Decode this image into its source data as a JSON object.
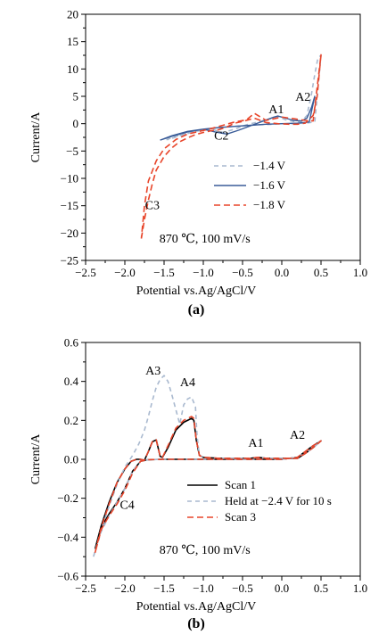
{
  "chart_data": [
    {
      "panel": "(a)",
      "type": "line",
      "xlabel": "Potential vs.Ag/AgCl/V",
      "ylabel": "Current/A",
      "xlim": [
        -2.5,
        1.0
      ],
      "ylim": [
        -25,
        20
      ],
      "xticks": [
        -2.5,
        -2.0,
        -1.5,
        -1.0,
        -0.5,
        0.0,
        0.5,
        1.0
      ],
      "yticks": [
        -25,
        -20,
        -15,
        -10,
        -5,
        0,
        5,
        10,
        15,
        20
      ],
      "xtick_labels": [
        "−2.5",
        "−2.0",
        "−1.5",
        "−1.0",
        "−0.5",
        "0.0",
        "0.5",
        "1.0"
      ],
      "ytick_labels": [
        "−25",
        "−20",
        "−15",
        "−10",
        "−5",
        "0",
        "5",
        "10",
        "15",
        "20"
      ],
      "annotations": [
        {
          "text": "A1",
          "x": -0.07,
          "y": 1.9
        },
        {
          "text": "A2",
          "x": 0.27,
          "y": 4.2
        },
        {
          "text": "C2",
          "x": -0.77,
          "y": -2.9
        },
        {
          "text": "C3",
          "x": -1.65,
          "y": -15.6
        },
        {
          "text": "870 ℃, 100 mV/s",
          "x": -0.98,
          "y": -21.7
        }
      ],
      "legend_position": "center-right",
      "series": [
        {
          "name": "−1.4 V",
          "color": "#a9b9cf",
          "style": "dashed",
          "x": [
            -1.47,
            -1.3,
            -1.1,
            -0.9,
            -0.75,
            -0.6,
            -0.45,
            -0.3,
            -0.15,
            -0.05,
            0.05,
            0.15,
            0.25,
            0.32,
            0.38,
            0.42,
            0.46,
            0.5,
            0.42,
            0.3,
            0.1,
            -0.1,
            -0.3,
            -0.5,
            -0.7,
            -0.9,
            -1.1,
            -1.3,
            -1.45,
            -1.47
          ],
          "y": [
            -2.9,
            -2.1,
            -1.4,
            -1.0,
            -1.6,
            -1.0,
            -0.2,
            0.3,
            0.9,
            1.3,
            0.7,
            0.4,
            0.4,
            1.5,
            5.5,
            9.0,
            12.0,
            12.5,
            0.3,
            0.1,
            0.0,
            -0.1,
            -0.2,
            -0.4,
            -0.6,
            -0.9,
            -1.4,
            -2.2,
            -2.9,
            -2.9
          ]
        },
        {
          "name": "−1.6 V",
          "color": "#3a5c98",
          "style": "solid",
          "x": [
            -1.55,
            -1.4,
            -1.2,
            -1.0,
            -0.85,
            -0.7,
            -0.55,
            -0.4,
            -0.25,
            -0.1,
            -0.05,
            0.05,
            0.15,
            0.25,
            0.32,
            0.38,
            0.42,
            0.35,
            0.2,
            0.0,
            -0.2,
            -0.4,
            -0.6,
            -0.8,
            -1.0,
            -1.2,
            -1.4,
            -1.55
          ],
          "y": [
            -3.0,
            -2.2,
            -1.4,
            -1.0,
            -1.5,
            -1.9,
            -1.2,
            -0.4,
            0.4,
            1.2,
            1.4,
            1.0,
            0.6,
            0.5,
            1.0,
            3.0,
            5.0,
            0.3,
            0.1,
            0.0,
            -0.1,
            -0.3,
            -0.5,
            -0.7,
            -1.0,
            -1.5,
            -2.3,
            -3.0
          ]
        },
        {
          "name": "−1.8 V",
          "color": "#e8452a",
          "style": "dashed",
          "x": [
            -1.79,
            -1.75,
            -1.7,
            -1.65,
            -1.6,
            -1.5,
            -1.4,
            -1.3,
            -1.2,
            -1.1,
            -1.0,
            -0.9,
            -0.8,
            -0.7,
            -0.6,
            -0.5,
            -0.35,
            -0.2,
            -0.05,
            0.1,
            0.2,
            0.3,
            0.4,
            0.45,
            0.5,
            0.4,
            0.3,
            0.15,
            0.0,
            -0.2,
            -0.35,
            -0.45,
            -0.6,
            -0.75,
            -0.9,
            -1.05,
            -1.2,
            -1.35,
            -1.5,
            -1.6,
            -1.7,
            -1.75,
            -1.79
          ],
          "y": [
            -21.0,
            -17.5,
            -14.0,
            -11.0,
            -8.5,
            -6.0,
            -4.4,
            -3.3,
            -2.6,
            -2.0,
            -1.6,
            -1.3,
            -1.1,
            -0.6,
            0.1,
            0.4,
            1.0,
            0.2,
            0.0,
            -0.1,
            -0.1,
            0.1,
            1.5,
            5.0,
            12.6,
            0.5,
            0.6,
            0.9,
            1.2,
            0.6,
            1.9,
            0.7,
            0.3,
            -0.3,
            -0.9,
            -1.4,
            -1.9,
            -2.9,
            -4.6,
            -6.8,
            -10.5,
            -15.0,
            -21.0
          ]
        }
      ]
    },
    {
      "panel": "(b)",
      "type": "line",
      "xlabel": "Potential vs.Ag/AgCl/V",
      "ylabel": "Current/A",
      "xlim": [
        -2.5,
        1.0
      ],
      "ylim": [
        -0.6,
        0.6
      ],
      "xticks": [
        -2.5,
        -2.0,
        -1.5,
        -1.0,
        -0.5,
        0.0,
        0.5,
        1.0
      ],
      "yticks": [
        -0.6,
        -0.4,
        -0.2,
        0.0,
        0.2,
        0.4,
        0.6
      ],
      "xtick_labels": [
        "−2.5",
        "−2.0",
        "−1.5",
        "−1.0",
        "−0.5",
        "0.0",
        "0.5",
        "1.0"
      ],
      "ytick_labels": [
        "−0.6",
        "−0.4",
        "−0.2",
        "0.0",
        "0.2",
        "0.4",
        "0.6"
      ],
      "annotations": [
        {
          "text": "A3",
          "x": -1.64,
          "y": 0.435
        },
        {
          "text": "A4",
          "x": -1.2,
          "y": 0.375
        },
        {
          "text": "A1",
          "x": -0.33,
          "y": 0.065
        },
        {
          "text": "A2",
          "x": 0.2,
          "y": 0.105
        },
        {
          "text": "C4",
          "x": -1.97,
          "y": -0.255
        },
        {
          "text": "870 ℃, 100 mV/s",
          "x": -0.98,
          "y": -0.485
        }
      ],
      "legend_position": "bottom-right",
      "series": [
        {
          "name": "Scan 1",
          "color": "#000000",
          "style": "solid",
          "x": [
            -2.38,
            -2.3,
            -2.2,
            -2.1,
            -2.0,
            -1.92,
            -1.85,
            -1.8,
            -1.75,
            -1.7,
            -1.65,
            -1.6,
            -1.57,
            -1.55,
            -1.52,
            -1.45,
            -1.35,
            -1.25,
            -1.15,
            -1.12,
            -1.09,
            -1.05,
            -1.0,
            -0.8,
            -0.6,
            -0.4,
            -0.3,
            -0.2,
            0.0,
            0.1,
            0.2,
            0.3,
            0.4,
            0.5,
            0.4,
            0.3,
            0.2,
            0.0,
            -0.5,
            -1.0,
            -1.5,
            -1.7,
            -1.8,
            -1.9,
            -2.0,
            -2.1,
            -2.2,
            -2.3,
            -2.38
          ],
          "y": [
            -0.46,
            -0.34,
            -0.22,
            -0.12,
            -0.05,
            -0.01,
            0.0,
            0.0,
            -0.005,
            0.04,
            0.09,
            0.1,
            0.05,
            0.015,
            0.01,
            0.06,
            0.15,
            0.19,
            0.21,
            0.2,
            0.1,
            0.02,
            0.01,
            0.005,
            0.005,
            0.005,
            0.01,
            0.005,
            0.005,
            0.005,
            0.005,
            0.03,
            0.06,
            0.095,
            0.07,
            0.04,
            0.01,
            0.0,
            0.0,
            0.0,
            0.0,
            -0.002,
            -0.01,
            -0.06,
            -0.15,
            -0.22,
            -0.28,
            -0.35,
            -0.46
          ]
        },
        {
          "name": "Held at −2.4 V for 10 s",
          "color": "#a9b9cf",
          "style": "dashed",
          "x": [
            -2.4,
            -2.3,
            -2.2,
            -2.1,
            -2.0,
            -1.9,
            -1.82,
            -1.75,
            -1.7,
            -1.65,
            -1.6,
            -1.55,
            -1.5,
            -1.45,
            -1.4,
            -1.3,
            -1.25,
            -1.2,
            -1.15,
            -1.1,
            -1.08,
            -1.05,
            -1.0,
            -0.8,
            -0.6,
            -0.4,
            -0.3,
            -0.2,
            0.0,
            0.1,
            0.2,
            0.3,
            0.4,
            0.5,
            0.4,
            0.3,
            0.2,
            0.0,
            -0.5,
            -1.0,
            -1.5,
            -1.7,
            -1.8,
            -1.9,
            -2.0,
            -2.1,
            -2.2,
            -2.3,
            -2.4
          ],
          "y": [
            -0.5,
            -0.36,
            -0.24,
            -0.13,
            -0.04,
            0.02,
            0.08,
            0.15,
            0.22,
            0.3,
            0.37,
            0.41,
            0.43,
            0.4,
            0.33,
            0.18,
            0.28,
            0.31,
            0.32,
            0.27,
            0.12,
            0.02,
            0.01,
            0.005,
            0.005,
            0.005,
            0.01,
            0.005,
            0.005,
            0.005,
            0.005,
            0.03,
            0.06,
            0.095,
            0.07,
            0.04,
            0.01,
            0.0,
            0.0,
            0.0,
            0.0,
            -0.002,
            -0.01,
            -0.06,
            -0.15,
            -0.22,
            -0.29,
            -0.37,
            -0.5
          ]
        },
        {
          "name": "Scan 3",
          "color": "#e8452a",
          "style": "dashed",
          "x": [
            -2.38,
            -2.3,
            -2.2,
            -2.1,
            -2.0,
            -1.92,
            -1.85,
            -1.8,
            -1.75,
            -1.7,
            -1.65,
            -1.6,
            -1.57,
            -1.55,
            -1.52,
            -1.45,
            -1.35,
            -1.25,
            -1.15,
            -1.12,
            -1.09,
            -1.05,
            -1.0,
            -0.8,
            -0.6,
            -0.4,
            -0.3,
            -0.2,
            0.0,
            0.1,
            0.2,
            0.3,
            0.4,
            0.5,
            0.4,
            0.3,
            0.2,
            0.0,
            -0.5,
            -1.0,
            -1.5,
            -1.7,
            -1.8,
            -1.9,
            -2.0,
            -2.1,
            -2.2,
            -2.3,
            -2.38
          ],
          "y": [
            -0.48,
            -0.35,
            -0.23,
            -0.12,
            -0.05,
            -0.01,
            0.0,
            0.0,
            -0.005,
            0.04,
            0.09,
            0.1,
            0.05,
            0.015,
            0.01,
            0.07,
            0.16,
            0.2,
            0.22,
            0.21,
            0.1,
            0.02,
            0.01,
            0.005,
            0.005,
            0.005,
            0.01,
            0.005,
            0.005,
            0.005,
            0.005,
            0.03,
            0.06,
            0.095,
            0.07,
            0.04,
            0.01,
            0.0,
            0.0,
            0.0,
            0.0,
            -0.002,
            -0.01,
            -0.07,
            -0.16,
            -0.23,
            -0.29,
            -0.36,
            -0.48
          ]
        }
      ]
    }
  ]
}
